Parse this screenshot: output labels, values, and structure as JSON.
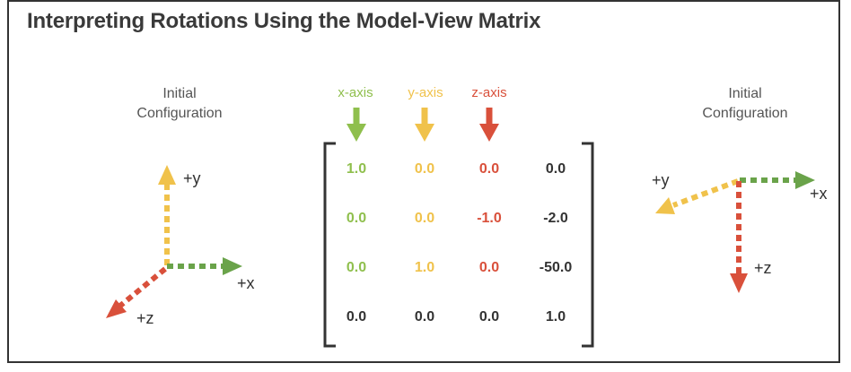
{
  "title": "Interpreting Rotations Using the Model-View Matrix",
  "left_diagram": {
    "caption_line1": "Initial",
    "caption_line2": "Configuration",
    "labels": {
      "x": "+x",
      "y": "+y",
      "z": "+z"
    }
  },
  "right_diagram": {
    "caption_line1": "Initial",
    "caption_line2": "Configuration",
    "labels": {
      "x": "+x",
      "y": "+y",
      "z": "+z"
    }
  },
  "column_headers": [
    "x-axis",
    "y-axis",
    "z-axis"
  ],
  "matrix": [
    [
      "1.0",
      "0.0",
      "0.0",
      "0.0"
    ],
    [
      "0.0",
      "0.0",
      "-1.0",
      "-2.0"
    ],
    [
      "0.0",
      "1.0",
      "0.0",
      "-50.0"
    ],
    [
      "0.0",
      "0.0",
      "0.0",
      "1.0"
    ]
  ],
  "colors": {
    "x": "#8fbf4d",
    "y": "#f0c24b",
    "z": "#d9503b",
    "w": "#333333",
    "x_arrow": "#6aa34a"
  }
}
